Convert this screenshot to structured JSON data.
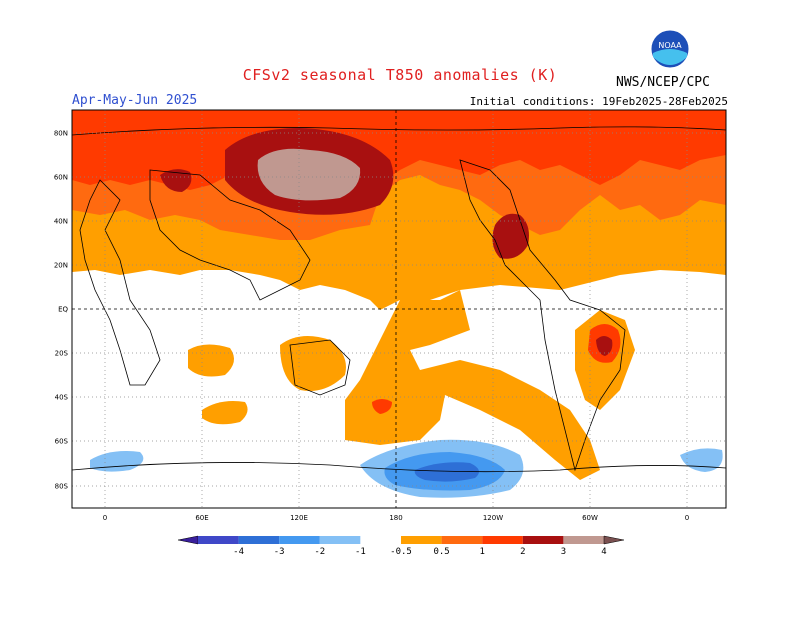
{
  "header": {
    "title": "CFSv2 seasonal T850 anomalies (K)",
    "period": "Apr-May-Jun 2025",
    "initial_conditions": "Initial conditions: 19Feb2025-28Feb2025",
    "agency": "NWS/NCEP/CPC",
    "logo_text": "NOAA"
  },
  "axes": {
    "lat_labels": [
      "80N",
      "60N",
      "40N",
      "20N",
      "EQ",
      "20S",
      "40S",
      "60S",
      "80S"
    ],
    "lon_labels": [
      "0",
      "60E",
      "120E",
      "180",
      "120W",
      "60W",
      "0"
    ]
  },
  "colorbar": {
    "labels": [
      "-4",
      "-3",
      "-2",
      "-1",
      "-0.5",
      "0.5",
      "1",
      "2",
      "3",
      "4"
    ],
    "colors": [
      "#3a1f9c",
      "#3f48c8",
      "#2e6fd6",
      "#4499f0",
      "#84c0f5",
      "#ffffff",
      "#ff9f00",
      "#ff6a10",
      "#ff3a00",
      "#a81010",
      "#c09890",
      "#7a5050"
    ]
  },
  "legend_colors": {
    "ocean": "#ffffff",
    "warm_05": "#ff9f00",
    "warm_1": "#ff6a10",
    "warm_2": "#ff3a00",
    "warm_3": "#a81010",
    "warm_4": "#c09890",
    "cool_05": "#84c0f5",
    "cool_1": "#4499f0",
    "cool_2": "#2e6fd6"
  }
}
